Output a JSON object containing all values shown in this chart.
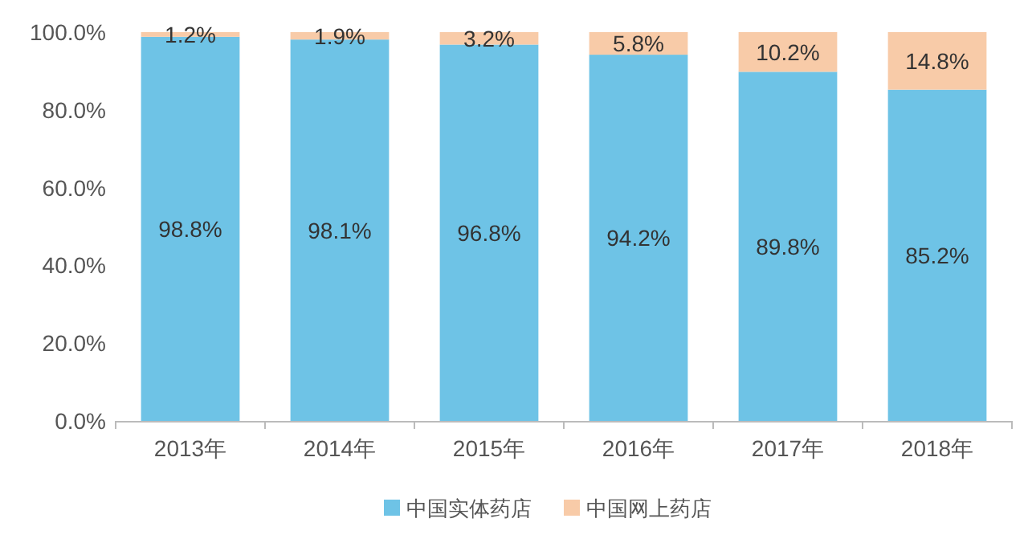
{
  "chart_data": {
    "type": "bar",
    "stacked": true,
    "legend": "bottom",
    "categories": [
      "2013年",
      "2014年",
      "2015年",
      "2016年",
      "2017年",
      "2018年"
    ],
    "series": [
      {
        "name": "中国实体药店",
        "color": "#6ec3e6",
        "values": [
          98.8,
          98.1,
          96.8,
          94.2,
          89.8,
          85.2
        ],
        "value_labels": [
          "98.8%",
          "98.1%",
          "96.8%",
          "94.2%",
          "89.8%",
          "85.2%"
        ]
      },
      {
        "name": "中国网上药店",
        "color": "#f8cba8",
        "values": [
          1.2,
          1.9,
          3.2,
          5.8,
          10.2,
          14.8
        ],
        "value_labels": [
          "1.2%",
          "1.9%",
          "3.2%",
          "5.8%",
          "10.2%",
          "14.8%"
        ]
      }
    ],
    "ylim": [
      0,
      100
    ],
    "yticks": [
      {
        "value": 0,
        "label": "0.0%"
      },
      {
        "value": 20,
        "label": "20.0%"
      },
      {
        "value": 40,
        "label": "40.0%"
      },
      {
        "value": 60,
        "label": "60.0%"
      },
      {
        "value": 80,
        "label": "80.0%"
      },
      {
        "value": 100,
        "label": "100.0%"
      }
    ]
  }
}
